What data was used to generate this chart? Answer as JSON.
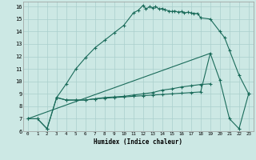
{
  "xlabel": "Humidex (Indice chaleur)",
  "bg_color": "#cce8e4",
  "line_color": "#1a6b5a",
  "grid_color": "#aacfcc",
  "xlim": [
    -0.5,
    23.5
  ],
  "ylim": [
    6,
    16.4
  ],
  "xticks": [
    0,
    1,
    2,
    3,
    4,
    5,
    6,
    7,
    8,
    9,
    10,
    11,
    12,
    13,
    14,
    15,
    16,
    17,
    18,
    19,
    20,
    21,
    22,
    23
  ],
  "yticks": [
    6,
    7,
    8,
    9,
    10,
    11,
    12,
    13,
    14,
    15,
    16
  ],
  "line1_x": [
    0,
    1,
    2,
    3,
    4,
    5,
    6,
    7,
    8,
    9,
    10,
    11,
    11.5,
    12,
    12.3,
    12.7,
    13,
    13.3,
    13.7,
    14,
    14.3,
    14.7,
    15,
    15.3,
    15.7,
    16,
    16.3,
    16.7,
    17,
    17.3,
    17.7,
    18,
    19,
    20,
    20.5,
    21,
    22,
    23
  ],
  "line1_y": [
    7,
    7,
    6.2,
    8.7,
    9.8,
    11,
    11.9,
    12.7,
    13.3,
    13.9,
    14.5,
    15.5,
    15.7,
    16.1,
    15.8,
    16.0,
    15.9,
    16.0,
    15.8,
    15.85,
    15.75,
    15.65,
    15.6,
    15.65,
    15.55,
    15.6,
    15.5,
    15.55,
    15.5,
    15.45,
    15.45,
    15.1,
    15.0,
    14.0,
    13.5,
    12.5,
    10.5,
    9.0
  ],
  "line2_x": [
    0,
    1,
    2,
    3,
    4,
    5,
    6,
    7,
    8,
    9,
    10,
    11,
    12,
    13,
    14,
    15,
    16,
    17,
    18,
    19
  ],
  "line2_y": [
    7,
    7,
    6.2,
    8.7,
    8.5,
    8.5,
    8.5,
    8.6,
    8.7,
    8.75,
    8.8,
    8.9,
    9.0,
    9.1,
    9.3,
    9.4,
    9.55,
    9.65,
    9.75,
    9.8
  ],
  "line3_x": [
    3,
    4,
    5,
    6,
    7,
    8,
    9,
    10,
    11,
    12,
    13,
    14,
    15,
    16,
    17,
    18,
    19,
    20,
    21,
    22,
    23
  ],
  "line3_y": [
    8.7,
    8.5,
    8.5,
    8.5,
    8.6,
    8.65,
    8.7,
    8.75,
    8.8,
    8.85,
    8.9,
    8.95,
    9.0,
    9.05,
    9.1,
    9.15,
    12.25,
    10.1,
    7.0,
    6.2,
    9.0
  ],
  "line4_x": [
    0,
    19
  ],
  "line4_y": [
    7.0,
    12.25
  ]
}
